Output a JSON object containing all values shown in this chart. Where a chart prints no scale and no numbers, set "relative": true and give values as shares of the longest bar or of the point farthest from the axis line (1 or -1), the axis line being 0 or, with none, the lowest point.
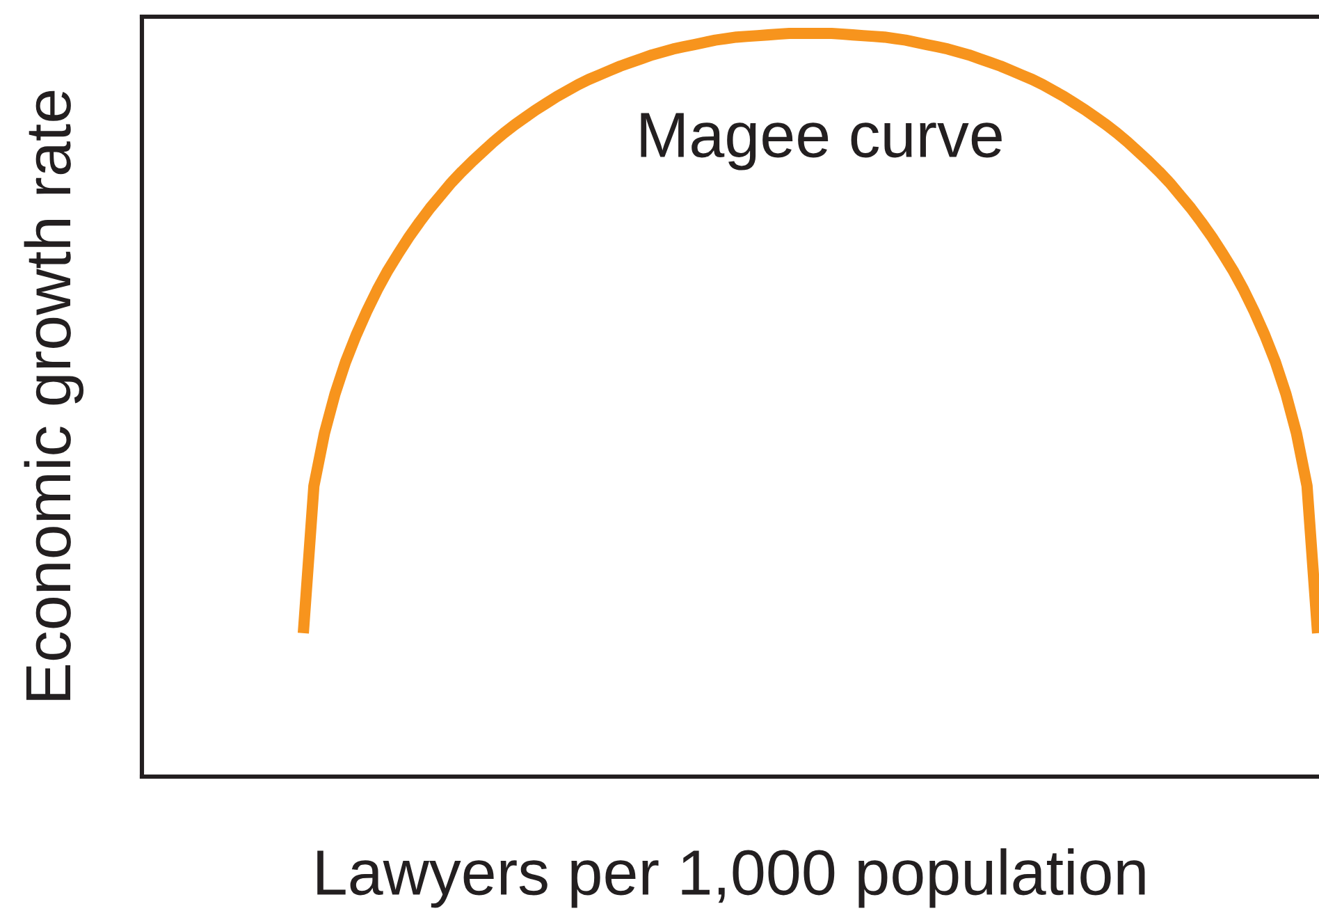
{
  "chart_data": {
    "type": "line",
    "xlabel": "Lawyers per 1,000 population",
    "ylabel": "Economic growth rate",
    "relative": true,
    "line_style": "solid",
    "categories": [
      null,
      null,
      null,
      null,
      null,
      null,
      null,
      null,
      null,
      null,
      null,
      null,
      null,
      null,
      null,
      null,
      null,
      null,
      null,
      null,
      null,
      null,
      null,
      null,
      null,
      null,
      null,
      null,
      null,
      null,
      null,
      null,
      null,
      null,
      null,
      null,
      null,
      null,
      null,
      null,
      null,
      null,
      null,
      null,
      null,
      null,
      null,
      null,
      null,
      null,
      null,
      null,
      null,
      null,
      null,
      null,
      null,
      null,
      null,
      null,
      null,
      null,
      null,
      null,
      null,
      null,
      null,
      null,
      null,
      null,
      null,
      null,
      null,
      null,
      null,
      null,
      null,
      null,
      null,
      null,
      null,
      null,
      null,
      null,
      null,
      null,
      null,
      null,
      null,
      null,
      null,
      null,
      null,
      null,
      null,
      null,
      null
    ],
    "series": [
      {
        "name": "Magee curve",
        "color": "#f7941d",
        "values": [
          0.193,
          0.391,
          0.462,
          0.515,
          0.558,
          0.594,
          0.626,
          0.655,
          0.681,
          0.704,
          0.726,
          0.746,
          0.765,
          0.782,
          0.799,
          0.814,
          0.828,
          0.841,
          0.854,
          0.866,
          0.877,
          0.887,
          0.897,
          0.906,
          0.915,
          0.923,
          0.931,
          0.938,
          0.944,
          0.95,
          0.956,
          0.961,
          0.966,
          0.971,
          0.975,
          0.979,
          0.982,
          0.985,
          0.988,
          0.991,
          0.993,
          0.995,
          0.996,
          0.997,
          0.998,
          0.999,
          1.0,
          1.0,
          1.0,
          1.0,
          1.0,
          0.999,
          0.998,
          0.997,
          0.996,
          0.995,
          0.993,
          0.991,
          0.988,
          0.985,
          0.982,
          0.979,
          0.975,
          0.971,
          0.966,
          0.961,
          0.956,
          0.95,
          0.944,
          0.938,
          0.931,
          0.923,
          0.915,
          0.906,
          0.897,
          0.887,
          0.877,
          0.866,
          0.854,
          0.841,
          0.828,
          0.814,
          0.799,
          0.782,
          0.765,
          0.746,
          0.726,
          0.704,
          0.681,
          0.655,
          0.626,
          0.594,
          0.558,
          0.515,
          0.462,
          0.391,
          0.193
        ]
      }
    ]
  }
}
